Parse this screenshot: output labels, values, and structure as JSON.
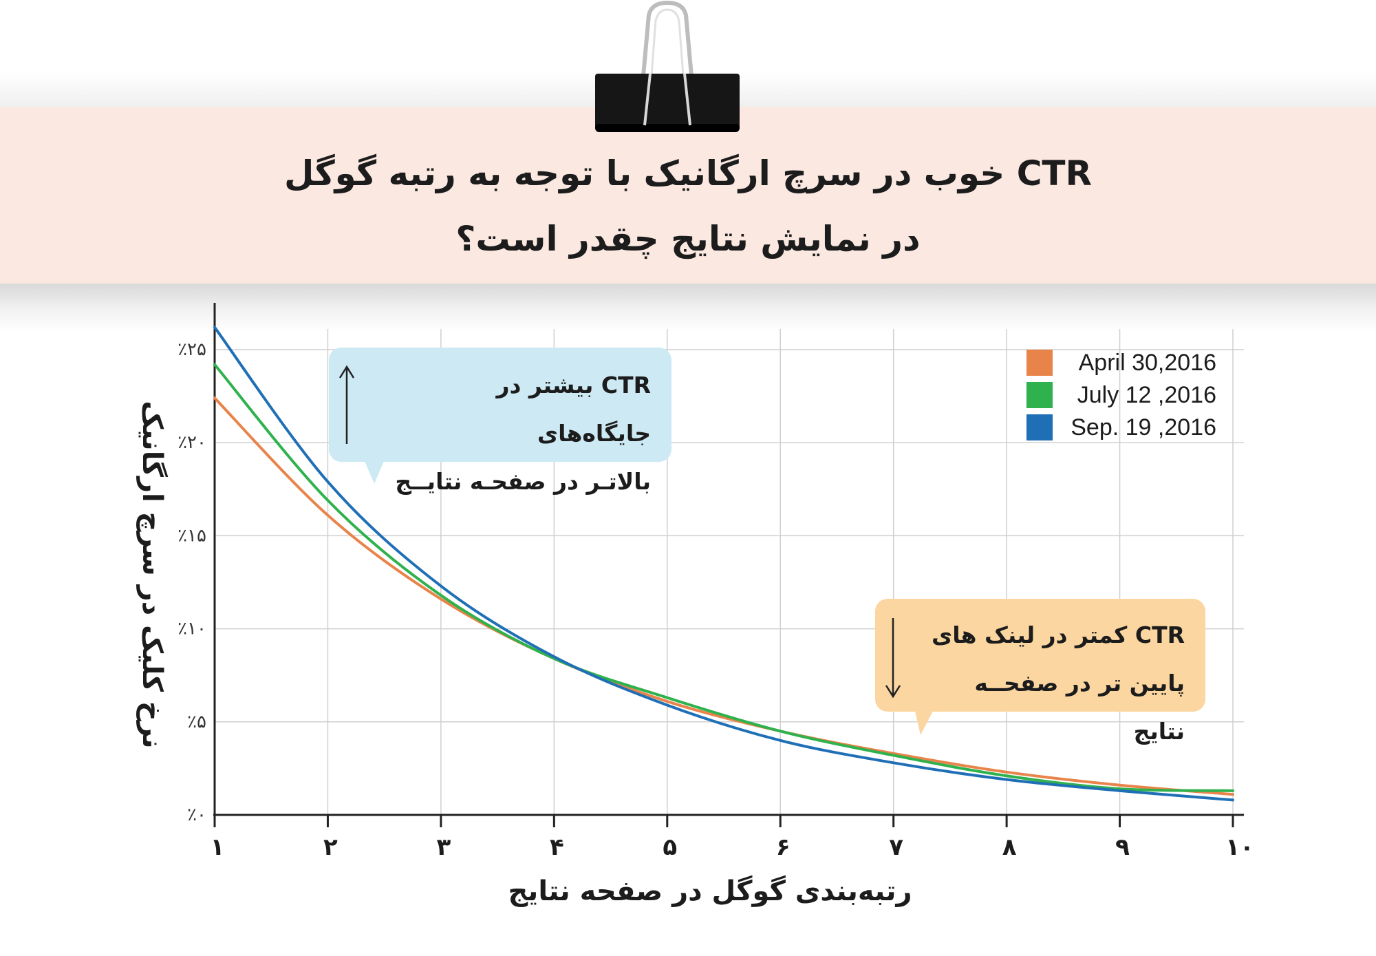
{
  "header": {
    "title_line1": "CTR خوب در سرچ ارگانیک  با توجه به رتبه گوگل",
    "title_line2": "در نمایش نتایج چقدر است؟"
  },
  "callouts": {
    "top": {
      "line1": "CTR بیشتر در جایگاه‌های",
      "line2": "بالاتـر در صفحـه نتایــج"
    },
    "bottom": {
      "line1": "CTR  کمتر در لینک های",
      "line2": "پایین تر در صفحــه نتایج"
    }
  },
  "colors": {
    "banner": "#fae8e1",
    "callout_top": "#cde9f4",
    "callout_bottom": "#fbd6a0",
    "grid": "#cfcfcf",
    "axis": "#222222"
  },
  "chart_data": {
    "type": "line",
    "ylabel": "نرخ کلیک در سرچ ارگانیک",
    "xlabel": "رتبه‌بندی گوگل در صفحه نتایج",
    "x": [
      1,
      2,
      3,
      4,
      5,
      6,
      7,
      8,
      9,
      10
    ],
    "x_tick_labels": [
      "۱",
      "۲",
      "۳",
      "۴",
      "۵",
      "۶",
      "۷",
      "۸",
      "۹",
      "۱۰"
    ],
    "ylim": [
      0,
      26
    ],
    "y_ticks": [
      0,
      5,
      10,
      15,
      20,
      25
    ],
    "y_tick_labels": [
      "٪۰",
      "٪۵",
      "٪۱۰",
      "٪۱۵",
      "٪۲۰",
      "٪۲۵"
    ],
    "grid": true,
    "legend_position": "top-right",
    "series": [
      {
        "name": "April 30,2016",
        "color": "#e8844a",
        "values": [
          22.4,
          16.1,
          11.6,
          8.4,
          6.1,
          4.5,
          3.3,
          2.3,
          1.6,
          1.1
        ]
      },
      {
        "name": "July 12 ,2016",
        "color": "#2fb24d",
        "values": [
          24.2,
          16.9,
          11.8,
          8.4,
          6.3,
          4.5,
          3.2,
          2.1,
          1.4,
          1.3
        ]
      },
      {
        "name": "Sep. 19 ,2016",
        "color": "#1f6fb7",
        "values": [
          26.2,
          17.9,
          12.3,
          8.5,
          5.9,
          4.0,
          2.8,
          1.9,
          1.3,
          0.8
        ]
      }
    ]
  }
}
